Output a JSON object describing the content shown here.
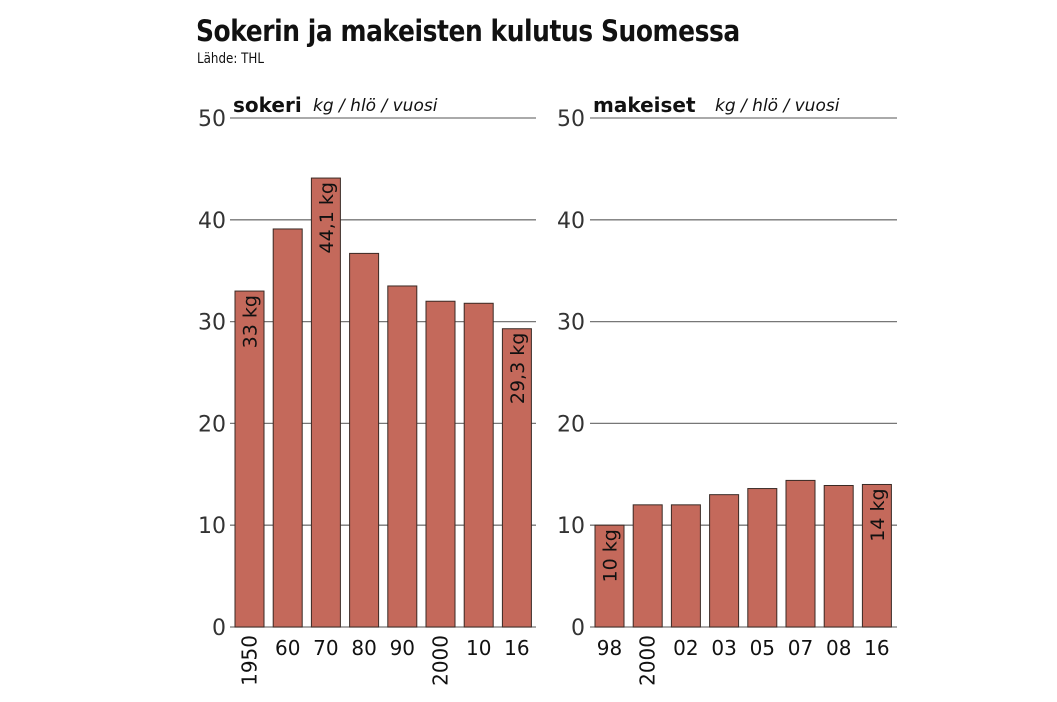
{
  "title": "Sokerin ja makeisten kulutus Suomessa",
  "source": "Lähde: THL",
  "bar_color": "#c4695b",
  "chart_data": [
    {
      "type": "bar",
      "title": "sokeri",
      "unit": "kg / hlö / vuosi",
      "categories": [
        "1950",
        "60",
        "70",
        "80",
        "90",
        "2000",
        "10",
        "16"
      ],
      "rotated_categories": [
        "1950",
        "2000"
      ],
      "values": [
        33,
        39.1,
        44.1,
        36.7,
        33.5,
        32.0,
        31.8,
        29.3
      ],
      "data_labels": {
        "0": "33 kg",
        "2": "44,1 kg",
        "7": "29,3 kg"
      },
      "yticks": [
        "0",
        "10",
        "20",
        "30",
        "40",
        "50"
      ],
      "ylim": [
        0,
        50
      ],
      "grid": true
    },
    {
      "type": "bar",
      "title": "makeiset",
      "unit": "kg / hlö / vuosi",
      "categories": [
        "98",
        "2000",
        "02",
        "03",
        "05",
        "07",
        "08",
        "16"
      ],
      "rotated_categories": [
        "2000"
      ],
      "values": [
        10,
        12.0,
        12.0,
        13.0,
        13.6,
        14.4,
        13.9,
        14
      ],
      "data_labels": {
        "0": "10 kg",
        "7": "14 kg"
      },
      "yticks": [
        "0",
        "10",
        "20",
        "30",
        "40",
        "50"
      ],
      "ylim": [
        0,
        50
      ],
      "grid": true
    }
  ]
}
